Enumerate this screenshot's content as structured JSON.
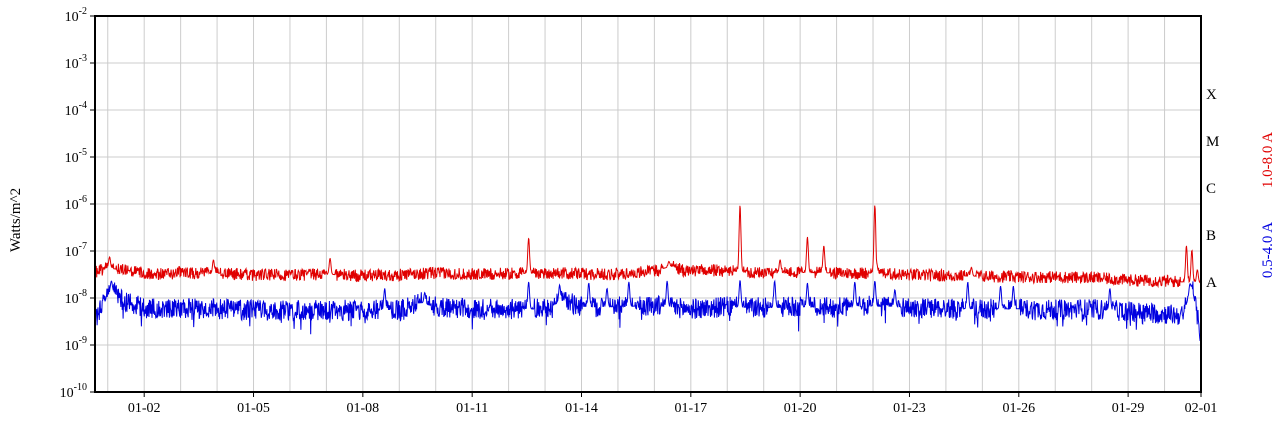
{
  "chart_data": {
    "type": "line",
    "title": "",
    "ylabel": "Watts/m^2",
    "yscale": "log",
    "ylim": [
      1e-10,
      0.01
    ],
    "y_ticks": [
      {
        "base": "10",
        "exp": "-2",
        "value": 0.01
      },
      {
        "base": "10",
        "exp": "-3",
        "value": 0.001
      },
      {
        "base": "10",
        "exp": "-4",
        "value": 0.0001
      },
      {
        "base": "10",
        "exp": "-5",
        "value": 1e-05
      },
      {
        "base": "10",
        "exp": "-6",
        "value": 1e-06
      },
      {
        "base": "10",
        "exp": "-7",
        "value": 1e-07
      },
      {
        "base": "10",
        "exp": "-8",
        "value": 1e-08
      },
      {
        "base": "10",
        "exp": "-9",
        "value": 1e-09
      },
      {
        "base": "10",
        "exp": "-10",
        "value": 1e-10
      }
    ],
    "xlim": [
      0.65,
      31.0
    ],
    "x_ticks": [
      {
        "label": "01-02",
        "day": 2
      },
      {
        "label": "01-05",
        "day": 5
      },
      {
        "label": "01-08",
        "day": 8
      },
      {
        "label": "01-11",
        "day": 11
      },
      {
        "label": "01-14",
        "day": 14
      },
      {
        "label": "01-17",
        "day": 17
      },
      {
        "label": "01-20",
        "day": 20
      },
      {
        "label": "01-23",
        "day": 23
      },
      {
        "label": "01-26",
        "day": 26
      },
      {
        "label": "01-29",
        "day": 29
      },
      {
        "label": "02-01",
        "day": 31
      }
    ],
    "flare_classes": [
      {
        "label": "X",
        "value": 0.0001
      },
      {
        "label": "M",
        "value": 1e-05
      },
      {
        "label": "C",
        "value": 1e-06
      },
      {
        "label": "B",
        "value": 1e-07
      },
      {
        "label": "A",
        "value": 1e-08
      }
    ],
    "grid": true,
    "series": [
      {
        "name": "1.0-8.0 A",
        "color": "#e00000",
        "baseline": [
          [
            0.65,
            3.6e-08
          ],
          [
            1.0,
            4.4e-08
          ],
          [
            1.5,
            3.8e-08
          ],
          [
            2.0,
            3.4e-08
          ],
          [
            2.5,
            3.2e-08
          ],
          [
            3.0,
            3.5e-08
          ],
          [
            3.5,
            3.3e-08
          ],
          [
            4.0,
            3.4e-08
          ],
          [
            5.0,
            3.1e-08
          ],
          [
            6.0,
            3.1e-08
          ],
          [
            7.0,
            3.2e-08
          ],
          [
            8.0,
            3e-08
          ],
          [
            9.0,
            3.1e-08
          ],
          [
            10.0,
            3.4e-08
          ],
          [
            11.0,
            3.2e-08
          ],
          [
            12.0,
            3.3e-08
          ],
          [
            13.0,
            3.4e-08
          ],
          [
            14.0,
            3.3e-08
          ],
          [
            15.0,
            3.2e-08
          ],
          [
            16.0,
            3.8e-08
          ],
          [
            16.5,
            4.8e-08
          ],
          [
            16.8,
            3.8e-08
          ],
          [
            17.5,
            3.9e-08
          ],
          [
            18.0,
            3.8e-08
          ],
          [
            19.0,
            3.4e-08
          ],
          [
            20.0,
            3.5e-08
          ],
          [
            21.0,
            3.4e-08
          ],
          [
            22.0,
            3.4e-08
          ],
          [
            23.0,
            3.1e-08
          ],
          [
            24.0,
            3e-08
          ],
          [
            25.0,
            2.9e-08
          ],
          [
            26.0,
            2.8e-08
          ],
          [
            27.0,
            2.8e-08
          ],
          [
            28.0,
            2.7e-08
          ],
          [
            29.0,
            2.4e-08
          ],
          [
            30.0,
            2.3e-08
          ],
          [
            31.0,
            2.1e-08
          ]
        ],
        "spikes": [
          [
            1.05,
            7.5e-08
          ],
          [
            3.9,
            6.5e-08
          ],
          [
            7.1,
            7e-08
          ],
          [
            12.55,
            1.9e-07
          ],
          [
            16.4,
            6e-08
          ],
          [
            18.35,
            9.5e-07
          ],
          [
            19.45,
            6.5e-08
          ],
          [
            20.2,
            2e-07
          ],
          [
            20.65,
            1.3e-07
          ],
          [
            22.05,
            9.5e-07
          ],
          [
            22.1,
            5.5e-08
          ],
          [
            24.7,
            4.5e-08
          ],
          [
            30.6,
            1.3e-07
          ],
          [
            30.75,
            1.05e-07
          ],
          [
            30.9,
            4e-08
          ]
        ],
        "noise_amplitude": 0.13
      },
      {
        "name": "0.5-4.0 A",
        "color": "#0000e0",
        "baseline": [
          [
            0.65,
            3.5e-09
          ],
          [
            0.9,
            8e-09
          ],
          [
            1.1,
            1.5e-08
          ],
          [
            1.4,
            9e-09
          ],
          [
            2.0,
            6e-09
          ],
          [
            3.0,
            6e-09
          ],
          [
            4.0,
            5.8e-09
          ],
          [
            5.0,
            5.5e-09
          ],
          [
            6.0,
            5.5e-09
          ],
          [
            7.0,
            5.6e-09
          ],
          [
            8.0,
            5.5e-09
          ],
          [
            9.0,
            5.6e-09
          ],
          [
            9.6,
            8e-09
          ],
          [
            10.0,
            6.5e-09
          ],
          [
            11.0,
            5.7e-09
          ],
          [
            12.0,
            5.9e-09
          ],
          [
            13.0,
            5.8e-09
          ],
          [
            13.5,
            9e-09
          ],
          [
            14.0,
            6.5e-09
          ],
          [
            15.0,
            6.5e-09
          ],
          [
            16.0,
            7e-09
          ],
          [
            17.0,
            5.8e-09
          ],
          [
            18.0,
            6.5e-09
          ],
          [
            19.0,
            6.2e-09
          ],
          [
            20.0,
            6.5e-09
          ],
          [
            21.0,
            6.3e-09
          ],
          [
            22.0,
            6.8e-09
          ],
          [
            23.0,
            6.3e-09
          ],
          [
            24.0,
            6e-09
          ],
          [
            25.0,
            5.8e-09
          ],
          [
            26.0,
            5.9e-09
          ],
          [
            27.0,
            5.6e-09
          ],
          [
            28.0,
            5.8e-09
          ],
          [
            29.0,
            5.2e-09
          ],
          [
            30.0,
            4.6e-09
          ],
          [
            30.5,
            4.2e-09
          ],
          [
            30.75,
            1.8e-08
          ],
          [
            31.0,
            1.5e-09
          ]
        ],
        "spikes": [
          [
            1.1,
            2.3e-08
          ],
          [
            8.6,
            1.6e-08
          ],
          [
            9.7,
            1.3e-08
          ],
          [
            12.55,
            2.2e-08
          ],
          [
            13.4,
            1.9e-08
          ],
          [
            14.2,
            2.1e-08
          ],
          [
            14.7,
            1.6e-08
          ],
          [
            15.3,
            2.2e-08
          ],
          [
            16.35,
            2.3e-08
          ],
          [
            18.35,
            2.4e-08
          ],
          [
            19.3,
            2.3e-08
          ],
          [
            20.2,
            2.1e-08
          ],
          [
            21.5,
            2.2e-08
          ],
          [
            22.05,
            2.3e-08
          ],
          [
            22.6,
            1.5e-08
          ],
          [
            24.6,
            2.2e-08
          ],
          [
            25.5,
            1.8e-08
          ],
          [
            25.85,
            1.8e-08
          ],
          [
            28.5,
            1.6e-08
          ],
          [
            30.7,
            2e-08
          ]
        ],
        "noise_amplitude": 0.22
      }
    ]
  }
}
